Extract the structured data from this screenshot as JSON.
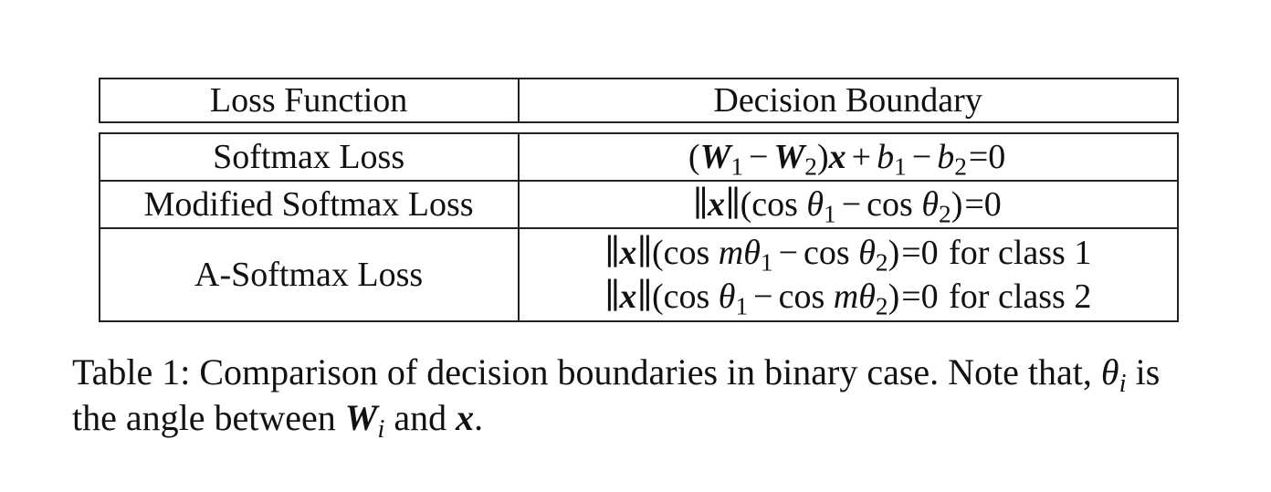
{
  "table": {
    "headers": [
      "Loss Function",
      "Decision Boundary"
    ],
    "rows": [
      {
        "loss": "Softmax Loss",
        "boundary": {
          "W1": "W",
          "W1_sub": "1",
          "minus": "−",
          "W2": "W",
          "W2_sub": "2",
          "x": "x",
          "plus": "+",
          "b1": "b",
          "b1_sub": "1",
          "b2": "b",
          "b2_sub": "2",
          "equals_zero": "=0"
        }
      },
      {
        "loss": "Modified Softmax Loss",
        "boundary": {
          "norm_open": "∥",
          "x": "x",
          "norm_close": "∥",
          "cos": "cos",
          "theta1": "θ",
          "theta1_sub": "1",
          "minus": "−",
          "theta2": "θ",
          "theta2_sub": "2",
          "equals_zero": "=0"
        }
      },
      {
        "loss": "A-Softmax Loss",
        "boundaries": [
          {
            "m1": "m",
            "theta1": "θ",
            "theta1_sub": "1",
            "theta2": "θ",
            "theta2_sub": "2",
            "equals_zero": "=0",
            "suffix": "for class 1"
          },
          {
            "theta1": "θ",
            "theta1_sub": "1",
            "m2": "m",
            "theta2": "θ",
            "theta2_sub": "2",
            "equals_zero": "=0",
            "suffix": "for class 2"
          }
        ]
      }
    ]
  },
  "caption": {
    "part1": "Table 1: Comparison of decision boundaries in binary case. Note that,",
    "theta": "θ",
    "theta_sub": "i",
    "part2": "is",
    "part3": "the angle between",
    "W": "W",
    "W_sub": "i",
    "part4": "and",
    "x": "x",
    "part5": "."
  }
}
